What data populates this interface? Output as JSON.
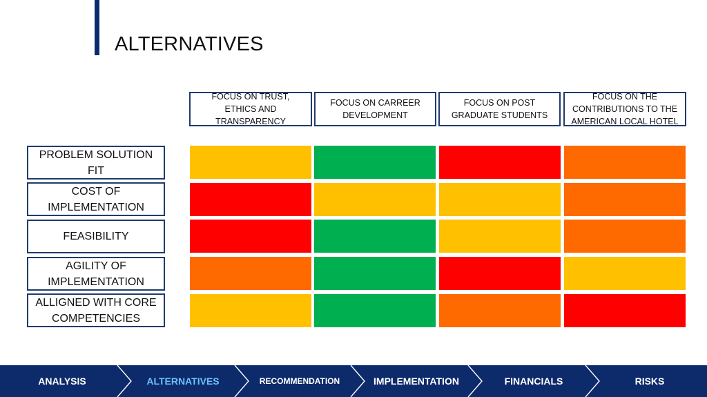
{
  "slide": {
    "title": "ALTERNATIVES"
  },
  "columns": [
    {
      "label": "FOCUS ON TRUST, ETHICS AND TRANSPARENCY"
    },
    {
      "label": "FOCUS ON CARREER DEVELOPMENT"
    },
    {
      "label": "FOCUS ON POST GRADUATE STUDENTS"
    },
    {
      "label": "FOCUS ON THE CONTRIBUTIONS TO THE AMERICAN LOCAL HOTEL"
    }
  ],
  "rows": [
    {
      "label": "PROBLEM SOLUTION FIT",
      "ratings": [
        "yellow",
        "green",
        "red",
        "orange"
      ]
    },
    {
      "label": "COST OF IMPLEMENTATION",
      "ratings": [
        "red",
        "yellow",
        "yellow",
        "orange"
      ]
    },
    {
      "label": "FEASIBILITY",
      "ratings": [
        "red",
        "green",
        "yellow",
        "orange"
      ]
    },
    {
      "label": "AGILITY OF IMPLEMENTATION",
      "ratings": [
        "orange",
        "green",
        "red",
        "yellow"
      ]
    },
    {
      "label": "ALLIGNED WITH CORE COMPETENCIES",
      "ratings": [
        "yellow",
        "green",
        "orange",
        "red"
      ]
    }
  ],
  "rating_colors": {
    "green": "#00b050",
    "yellow": "#ffc000",
    "orange": "#ff6a00",
    "red": "#ff0000"
  },
  "nav": {
    "items": [
      {
        "label": "ANALYSIS",
        "active": false
      },
      {
        "label": "ALTERNATIVES",
        "active": true
      },
      {
        "label": "RECOMMENDATION",
        "active": false
      },
      {
        "label": "IMPLEMENTATION",
        "active": false
      },
      {
        "label": "FINANCIALS",
        "active": false
      },
      {
        "label": "RISKS",
        "active": false
      }
    ],
    "background_color": "#0d2b6b",
    "active_text_color": "#6fc1ff"
  }
}
